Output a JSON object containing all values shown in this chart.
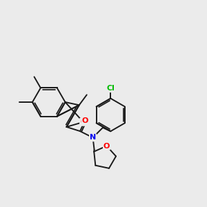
{
  "background_color": "#ebebeb",
  "bond_color": "#1a1a1a",
  "atom_colors": {
    "O": "#ff0000",
    "N": "#0000ee",
    "Cl": "#00bb00",
    "C": "#1a1a1a"
  },
  "bond_width": 1.4,
  "figsize": [
    3.0,
    3.0
  ],
  "dpi": 100
}
